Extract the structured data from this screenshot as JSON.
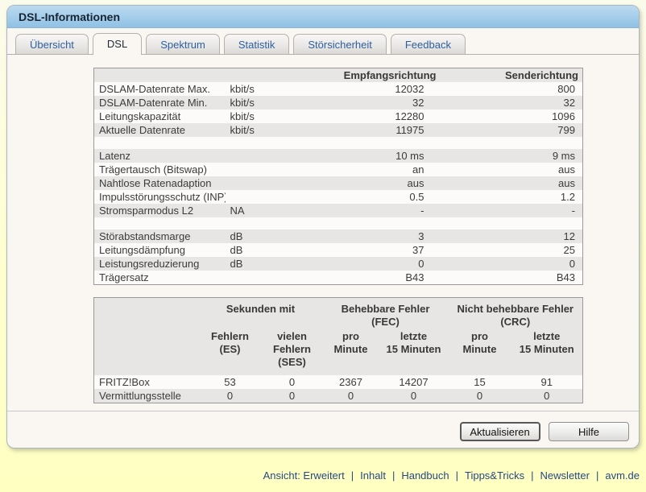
{
  "window": {
    "title": "DSL-Informationen"
  },
  "tabs": [
    {
      "label": "Übersicht",
      "active": false
    },
    {
      "label": "DSL",
      "active": true
    },
    {
      "label": "Spektrum",
      "active": false
    },
    {
      "label": "Statistik",
      "active": false
    },
    {
      "label": "Störsicherheit",
      "active": false
    },
    {
      "label": "Feedback",
      "active": false
    }
  ],
  "dsl_table": {
    "col3_header": "Empfangsrichtung",
    "col4_header": "Senderichtung",
    "rows": [
      {
        "label": "DSLAM-Datenrate Max.",
        "unit": "kbit/s",
        "rx": "12032",
        "tx": "800"
      },
      {
        "label": "DSLAM-Datenrate Min.",
        "unit": "kbit/s",
        "rx": "32",
        "tx": "32"
      },
      {
        "label": "Leitungskapazität",
        "unit": "kbit/s",
        "rx": "12280",
        "tx": "1096"
      },
      {
        "label": "Aktuelle Datenrate",
        "unit": "kbit/s",
        "rx": "11975",
        "tx": "799"
      },
      {
        "blank": true
      },
      {
        "label": "Latenz",
        "unit": "",
        "rx": "10 ms",
        "tx": "9 ms"
      },
      {
        "label": "Trägertausch (Bitswap)",
        "unit": "",
        "rx": "an",
        "tx": "aus"
      },
      {
        "label": "Nahtlose Ratenadaption",
        "unit": "",
        "rx": "aus",
        "tx": "aus"
      },
      {
        "label": "Impulsstörungsschutz (INP)",
        "unit": "",
        "rx": "0.5",
        "tx": "1.2"
      },
      {
        "label": "Stromsparmodus L2",
        "unit": "NA",
        "rx": "-",
        "tx": "-"
      },
      {
        "blank": true
      },
      {
        "label": "Störabstandsmarge",
        "unit": "dB",
        "rx": "3",
        "tx": "12"
      },
      {
        "label": "Leitungsdämpfung",
        "unit": "dB",
        "rx": "37",
        "tx": "25"
      },
      {
        "label": "Leistungsreduzierung",
        "unit": "dB",
        "rx": "0",
        "tx": "0"
      },
      {
        "label": "Trägersatz",
        "unit": "",
        "rx": "B43",
        "tx": "B43"
      }
    ]
  },
  "error_table": {
    "group_headers": [
      "Sekunden mit",
      "Behebbare Fehler (FEC)",
      "Nicht behebbare Fehler\n(CRC)"
    ],
    "col_headers": [
      "Fehlern\n(ES)",
      "vielen\nFehlern\n(SES)",
      "pro\nMinute",
      "letzte\n15 Minuten",
      "pro\nMinute",
      "letzte\n15 Minuten"
    ],
    "rows": [
      {
        "label": "FRITZ!Box",
        "values": [
          "53",
          "0",
          "2367",
          "14207",
          "15",
          "91"
        ]
      },
      {
        "label": "Vermittlungsstelle",
        "values": [
          "0",
          "0",
          "0",
          "0",
          "0",
          "0"
        ]
      }
    ]
  },
  "buttons": {
    "refresh": "Aktualisieren",
    "help": "Hilfe"
  },
  "footer": {
    "links": [
      "Ansicht: Erweitert",
      "Inhalt",
      "Handbuch",
      "Tipps&Tricks",
      "Newsletter",
      "avm.de"
    ],
    "separator": "|"
  },
  "colors": {
    "titlebar_top": "#bcdaf0",
    "titlebar_bottom": "#8fc1e4",
    "page_background": "#ffffc9",
    "panel_background": "#faf7f2",
    "row_stripe": "#e8e6e4",
    "tab_link_blue": "#2d5f9f",
    "footer_link_blue": "#27497e"
  }
}
